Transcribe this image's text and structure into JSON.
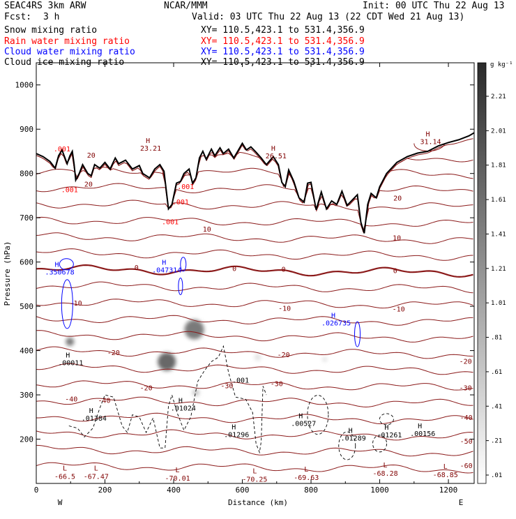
{
  "header": {
    "model_name": "SEAC4RS   3km ARW",
    "center": "NCAR/MMM",
    "init": "Init: 00 UTC Thu 22 Aug 13",
    "fcst_label": "Fcst:",
    "fcst_value": "3 h",
    "valid": "Valid: 03 UTC Thu 22 Aug 13 (22 CDT Wed 21 Aug 13)"
  },
  "fields": [
    {
      "label": "Snow mixing ratio",
      "xy": "XY= 110.5,423.1 to 531.4,356.9",
      "color": "#000000"
    },
    {
      "label": "Rain water mixing ratio",
      "xy": "XY= 110.5,423.1 to 531.4,356.9",
      "color": "#ff0000"
    },
    {
      "label": "Cloud water mixing ratio",
      "xy": "XY= 110.5,423.1 to 531.4,356.9",
      "color": "#0000ff"
    },
    {
      "label": "Cloud ice mixing ratio",
      "xy": "XY= 110.5,423.1 to 531.4,356.9",
      "color": "#000000"
    }
  ],
  "chart_data": {
    "type": "cross-section",
    "xlabel": "Distance (km)",
    "ylabel": "Pressure (hPa)",
    "xlim": [
      0,
      1275
    ],
    "ylim": [
      1050,
      100
    ],
    "x_ticks": [
      0,
      200,
      400,
      600,
      800,
      1000,
      1200
    ],
    "y_ticks": [
      200,
      300,
      400,
      500,
      600,
      700,
      800,
      900,
      1000
    ],
    "x_end_labels": {
      "left": "W",
      "right": "E"
    },
    "colorbar": {
      "unit": "g kg⁻¹",
      "ticks": [
        "2.21",
        "2.01",
        "1.81",
        "1.61",
        "1.41",
        "1.21",
        "1.01",
        ".81",
        ".61",
        ".41",
        ".21",
        ".01"
      ]
    },
    "temperature_labels": [
      {
        "text": "-40",
        "x": 102,
        "p": 285,
        "color": "#800000"
      },
      {
        "text": "-40",
        "x": 198,
        "p": 282,
        "color": "#800000"
      },
      {
        "text": "-30",
        "x": 555,
        "p": 315,
        "color": "#800000"
      },
      {
        "text": "-30",
        "x": 700,
        "p": 320,
        "color": "#800000"
      },
      {
        "text": "-20",
        "x": 320,
        "p": 310,
        "color": "#800000"
      },
      {
        "text": "-20",
        "x": 225,
        "p": 390,
        "color": "#800000"
      },
      {
        "text": "-20",
        "x": 720,
        "p": 385,
        "color": "#800000"
      },
      {
        "text": "-10",
        "x": 115,
        "p": 502,
        "color": "#800000"
      },
      {
        "text": "-10",
        "x": 723,
        "p": 490,
        "color": "#800000"
      },
      {
        "text": "-10",
        "x": 1055,
        "p": 488,
        "color": "#800000"
      },
      {
        "text": "0",
        "x": 292,
        "p": 582,
        "color": "#800000"
      },
      {
        "text": "0",
        "x": 577,
        "p": 580,
        "color": "#800000"
      },
      {
        "text": "0",
        "x": 720,
        "p": 578,
        "color": "#800000"
      },
      {
        "text": "0",
        "x": 1045,
        "p": 575,
        "color": "#800000"
      },
      {
        "text": "10",
        "x": 497,
        "p": 669,
        "color": "#800000"
      },
      {
        "text": "10",
        "x": 1050,
        "p": 649,
        "color": "#800000"
      },
      {
        "text": "20",
        "x": 152,
        "p": 770,
        "color": "#800000"
      },
      {
        "text": "20",
        "x": 1052,
        "p": 739,
        "color": "#800000"
      },
      {
        "text": "20",
        "x": 160,
        "p": 836,
        "color": "#800000"
      },
      {
        "text": "-40",
        "x": 1252,
        "p": 243,
        "color": "#800000"
      },
      {
        "text": "-30",
        "x": 1250,
        "p": 310,
        "color": "#800000"
      },
      {
        "text": "-20",
        "x": 1250,
        "p": 370,
        "color": "#800000"
      },
      {
        "text": "-50",
        "x": 1252,
        "p": 190,
        "color": "#800000"
      },
      {
        "text": "-60",
        "x": 1252,
        "p": 135,
        "color": "#800000"
      }
    ],
    "minima": [
      {
        "text": "-66.5",
        "x": 67,
        "p": 120
      },
      {
        "text": "-67.47",
        "x": 158,
        "p": 120
      },
      {
        "text": "-70.01",
        "x": 395,
        "p": 116
      },
      {
        "text": "-70.25",
        "x": 620,
        "p": 113
      },
      {
        "text": "-69.63",
        "x": 770,
        "p": 117
      },
      {
        "text": "-68.28",
        "x": 1000,
        "p": 127
      },
      {
        "text": "-68.85",
        "x": 1175,
        "p": 124
      }
    ],
    "maxima": [
      {
        "text": ".01384",
        "x": 160,
        "p": 245,
        "color": "#000000"
      },
      {
        "text": ".01024",
        "x": 420,
        "p": 268,
        "color": "#000000"
      },
      {
        "text": ".01296",
        "x": 575,
        "p": 208,
        "color": "#000000"
      },
      {
        "text": ".00527",
        "x": 770,
        "p": 233,
        "color": "#000000"
      },
      {
        "text": ".01289",
        "x": 915,
        "p": 200,
        "color": "#000000"
      },
      {
        "text": ".01261",
        "x": 1020,
        "p": 207,
        "color": "#000000"
      },
      {
        "text": ".00156",
        "x": 1117,
        "p": 210,
        "color": "#000000"
      },
      {
        "text": ".00011",
        "x": 92,
        "p": 370,
        "color": "#000000"
      },
      {
        "text": ".026735",
        "x": 865,
        "p": 460,
        "color": "#0000ff"
      },
      {
        "text": ".350678",
        "x": 60,
        "p": 575,
        "color": "#0000ff"
      },
      {
        "text": ".047314",
        "x": 372,
        "p": 580,
        "color": "#0000ff"
      },
      {
        "text": "23.21",
        "x": 325,
        "p": 855,
        "color": "#800000"
      },
      {
        "text": "26.51",
        "x": 690,
        "p": 837,
        "color": "#800000"
      },
      {
        "text": "31.14",
        "x": 1140,
        "p": 870,
        "color": "#800000"
      }
    ],
    "contour_values": [
      {
        "text": ".001",
        "x": 595,
        "p": 328,
        "color": "#000000"
      },
      {
        "text": ".001",
        "x": 390,
        "p": 685,
        "color": "#ff0000"
      },
      {
        "text": ".001",
        "x": 420,
        "p": 730,
        "color": "#ff0000"
      },
      {
        "text": ".001",
        "x": 435,
        "p": 765,
        "color": "#ff0000"
      },
      {
        "text": ".001",
        "x": 97,
        "p": 758,
        "color": "#ff0000"
      },
      {
        "text": ".001",
        "x": 75,
        "p": 850,
        "color": "#ff0000"
      }
    ],
    "label_letters": {
      "high": "H",
      "low": "L"
    },
    "terrain_pressure": [
      [
        0,
        845
      ],
      [
        20,
        838
      ],
      [
        40,
        827
      ],
      [
        55,
        812
      ],
      [
        65,
        840
      ],
      [
        75,
        853
      ],
      [
        90,
        822
      ],
      [
        98,
        840
      ],
      [
        105,
        850
      ],
      [
        110,
        822
      ],
      [
        115,
        785
      ],
      [
        125,
        800
      ],
      [
        135,
        820
      ],
      [
        150,
        800
      ],
      [
        160,
        795
      ],
      [
        170,
        820
      ],
      [
        185,
        812
      ],
      [
        200,
        825
      ],
      [
        215,
        810
      ],
      [
        230,
        835
      ],
      [
        240,
        822
      ],
      [
        260,
        830
      ],
      [
        280,
        810
      ],
      [
        300,
        818
      ],
      [
        310,
        800
      ],
      [
        330,
        790
      ],
      [
        345,
        810
      ],
      [
        360,
        820
      ],
      [
        372,
        805
      ],
      [
        385,
        720
      ],
      [
        395,
        730
      ],
      [
        408,
        778
      ],
      [
        420,
        782
      ],
      [
        430,
        800
      ],
      [
        445,
        810
      ],
      [
        455,
        778
      ],
      [
        465,
        790
      ],
      [
        475,
        835
      ],
      [
        485,
        850
      ],
      [
        495,
        832
      ],
      [
        510,
        855
      ],
      [
        520,
        840
      ],
      [
        535,
        858
      ],
      [
        545,
        845
      ],
      [
        560,
        855
      ],
      [
        575,
        835
      ],
      [
        585,
        848
      ],
      [
        600,
        868
      ],
      [
        612,
        853
      ],
      [
        625,
        860
      ],
      [
        640,
        848
      ],
      [
        655,
        835
      ],
      [
        670,
        820
      ],
      [
        690,
        838
      ],
      [
        705,
        820
      ],
      [
        715,
        780
      ],
      [
        725,
        770
      ],
      [
        735,
        808
      ],
      [
        750,
        782
      ],
      [
        765,
        745
      ],
      [
        780,
        735
      ],
      [
        790,
        778
      ],
      [
        800,
        780
      ],
      [
        815,
        718
      ],
      [
        830,
        758
      ],
      [
        845,
        720
      ],
      [
        860,
        738
      ],
      [
        875,
        730
      ],
      [
        890,
        760
      ],
      [
        905,
        728
      ],
      [
        920,
        740
      ],
      [
        935,
        752
      ],
      [
        945,
        690
      ],
      [
        955,
        665
      ],
      [
        965,
        730
      ],
      [
        975,
        755
      ],
      [
        990,
        745
      ],
      [
        1000,
        770
      ],
      [
        1020,
        800
      ],
      [
        1050,
        825
      ],
      [
        1080,
        838
      ],
      [
        1110,
        846
      ],
      [
        1140,
        850
      ],
      [
        1170,
        862
      ],
      [
        1200,
        870
      ],
      [
        1230,
        876
      ],
      [
        1260,
        885
      ],
      [
        1275,
        892
      ]
    ],
    "snow_plumes": [
      {
        "x": 98,
        "p_top": 330,
        "p_bot": 510,
        "width": 12,
        "intensity": 0.7
      },
      {
        "x": 380,
        "p_top": 230,
        "p_bot": 520,
        "width": 26,
        "intensity": 0.8
      },
      {
        "x": 460,
        "p_top": 335,
        "p_bot": 560,
        "width": 28,
        "intensity": 0.7
      },
      {
        "x": 465,
        "p_top": 270,
        "p_bot": 340,
        "width": 10,
        "intensity": 0.3
      },
      {
        "x": 645,
        "p_top": 330,
        "p_bot": 440,
        "width": 10,
        "intensity": 0.15
      },
      {
        "x": 840,
        "p_top": 350,
        "p_bot": 410,
        "width": 6,
        "intensity": 0.2
      }
    ]
  }
}
